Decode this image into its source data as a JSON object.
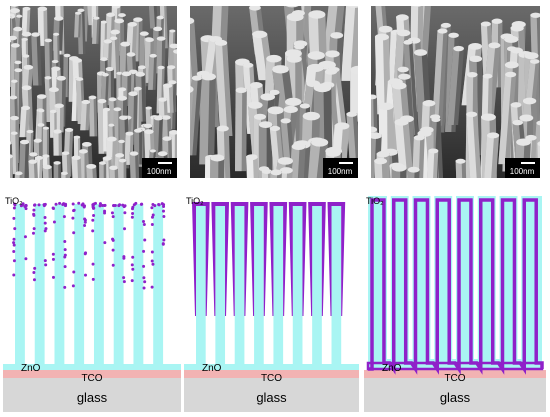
{
  "panels": [
    {
      "id": "a",
      "scale_bar": "100nm",
      "tio2": "TiO₂",
      "zno": "ZnO",
      "tco": "TCO",
      "glass": "glass",
      "coating": "particles"
    },
    {
      "id": "b",
      "scale_bar": "100nm",
      "tio2": "TiO₂",
      "zno": "ZnO",
      "tco": "TCO",
      "glass": "glass",
      "coating": "tapered-shell"
    },
    {
      "id": "c",
      "scale_bar": "100nm",
      "tio2": "TiO₂",
      "zno": "ZnO",
      "tco": "TCO",
      "glass": "glass",
      "coating": "conformal-shell"
    }
  ],
  "colors": {
    "zno": "#a9f5f3",
    "tio2": "#8f21c9",
    "tco": "#f2b3b3",
    "glass": "#d7d7d7",
    "sem_bg": "#3a3a3a",
    "sem_rod": "#c8c8c8"
  },
  "icons": [
    "sem-micrograph",
    "scale-bar-icon"
  ]
}
